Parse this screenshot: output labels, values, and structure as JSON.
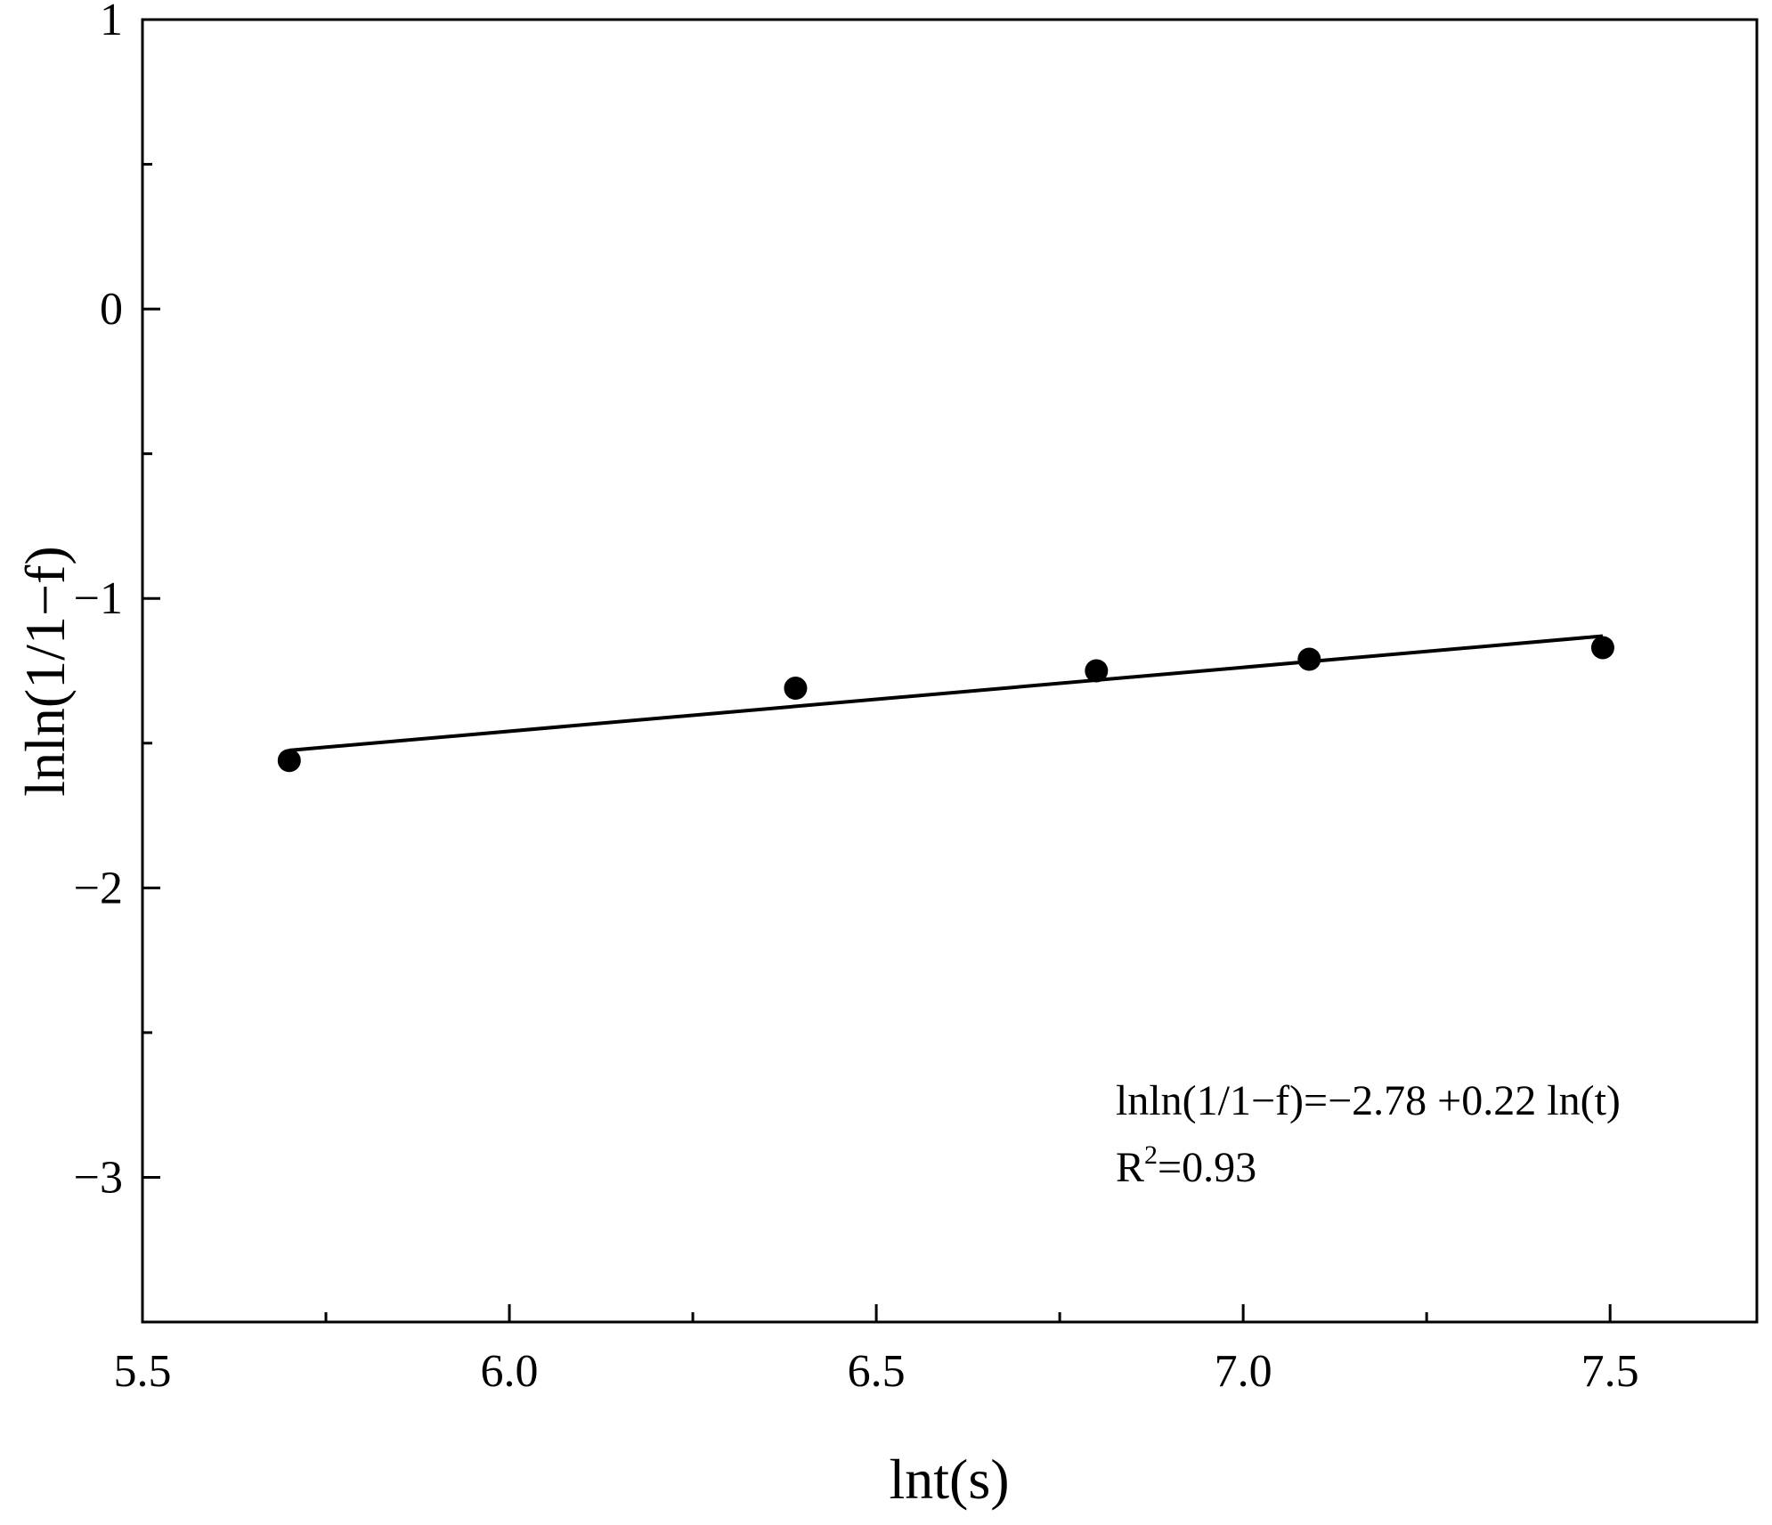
{
  "chart_data": {
    "type": "scatter",
    "title": "",
    "xlabel": "lnt(s)",
    "ylabel": "lnln(1/1−f)",
    "xlim": [
      5.5,
      7.7
    ],
    "ylim": [
      -3.5,
      1.0
    ],
    "xticks": [
      5.5,
      6.0,
      6.5,
      7.0,
      7.5
    ],
    "xtick_labels": [
      "5.5",
      "6.0",
      "6.5",
      "7.0",
      "7.5"
    ],
    "yticks": [
      1,
      0,
      -1,
      -2,
      -3
    ],
    "ytick_labels": [
      "1",
      "0",
      "−1",
      "−2",
      "−3"
    ],
    "grid": false,
    "series": [
      {
        "marker": "filled-circle",
        "color": "#000000",
        "x": [
          5.7,
          6.39,
          6.8,
          7.09,
          7.49
        ],
        "y": [
          -1.56,
          -1.31,
          -1.25,
          -1.21,
          -1.17
        ]
      }
    ],
    "fit": {
      "color": "#000000",
      "x": [
        5.7,
        7.49
      ],
      "y": [
        -1.525,
        -1.13
      ]
    },
    "annotation": {
      "equation": "lnln(1/1−f)=−2.78 +0.22 ln(t)",
      "r2_prefix": "R",
      "r2_sup": "2",
      "r2_value": "=0.93"
    }
  }
}
